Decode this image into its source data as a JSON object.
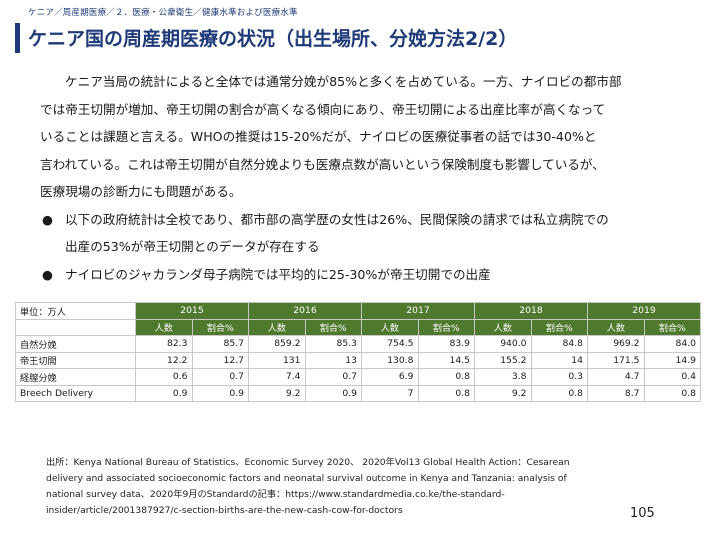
{
  "breadcrumb": "ケニア／周産期医療／２．医療・公衆衛生／健康水準および医療水準",
  "title": "ケニア国の周産期医療の状況（出生場所、分娩方法2/2）",
  "paragraph_lines": [
    "ケニア当局の統計によると全体では通常分娩が85%と多くを占めている。一方、ナイロビの都市部",
    "では帝王切開が増加、帝王切開の割合が高くなる傾向にあり、帝王切開による出産比率が高くなって",
    "いることは課題と言える。WHOの推奨は15-20%だが、ナイロビの医療従事者の話では30-40%と",
    "言われている。これは帝王切開が自然分娩よりも医療点数が高いという保険制度も影響しているが、",
    "医療現場の診断力にも問題がある。"
  ],
  "bullets": [
    {
      "marker": "●",
      "lines": [
        "以下の政府統計は全校であり、都市部の高学歴の女性は26%、民間保険の請求では私立病院での",
        "出産の53%が帝王切開とのデータが存在する"
      ]
    },
    {
      "marker": "●",
      "lines": [
        "ナイロビのジャカランダ母子病院では平均的に25-30%が帝王切開での出産"
      ]
    }
  ],
  "table": {
    "unit_label": "単位：万人",
    "years": [
      "2015",
      "2016",
      "2017",
      "2018",
      "2019"
    ],
    "sub_headers": [
      "人数",
      "割合%"
    ],
    "rows": [
      {
        "label": "自然分娩",
        "values": [
          "82.3",
          "85.7",
          "859.2",
          "85.3",
          "754.5",
          "83.9",
          "940.0",
          "84.8",
          "969.2",
          "84.0"
        ]
      },
      {
        "label": "帝王切開",
        "values": [
          "12.2",
          "12.7",
          "131",
          "13",
          "130.8",
          "14.5",
          "155.2",
          "14",
          "171.5",
          "14.9"
        ]
      },
      {
        "label": "経膣分娩",
        "values": [
          "0.6",
          "0.7",
          "7.4",
          "0.7",
          "6.9",
          "0.8",
          "3.8",
          "0.3",
          "4.7",
          "0.4"
        ]
      },
      {
        "label": "Breech Delivery",
        "values": [
          "0.9",
          "0.9",
          "9.2",
          "0.9",
          "7",
          "0.8",
          "9.2",
          "0.8",
          "8.7",
          "0.8"
        ]
      }
    ]
  },
  "source_lines": [
    "出所：Kenya National Bureau of Statistics、Economic Survey 2020、 2020年Vol13 Global Health Action：Cesarean",
    "delivery and associated socioeconomic factors and neonatal survival outcome in Kenya and Tanzania: analysis of",
    "national survey data、2020年9月のStandardの記事：https://www.standardmedia.co.ke/the-standard-",
    "insider/article/2001387927/c-section-births-are-the-new-cash-cow-for-doctors"
  ],
  "page_number": "105",
  "colors": {
    "title": "#1f3a78",
    "table_header": "#4f7a2e"
  }
}
